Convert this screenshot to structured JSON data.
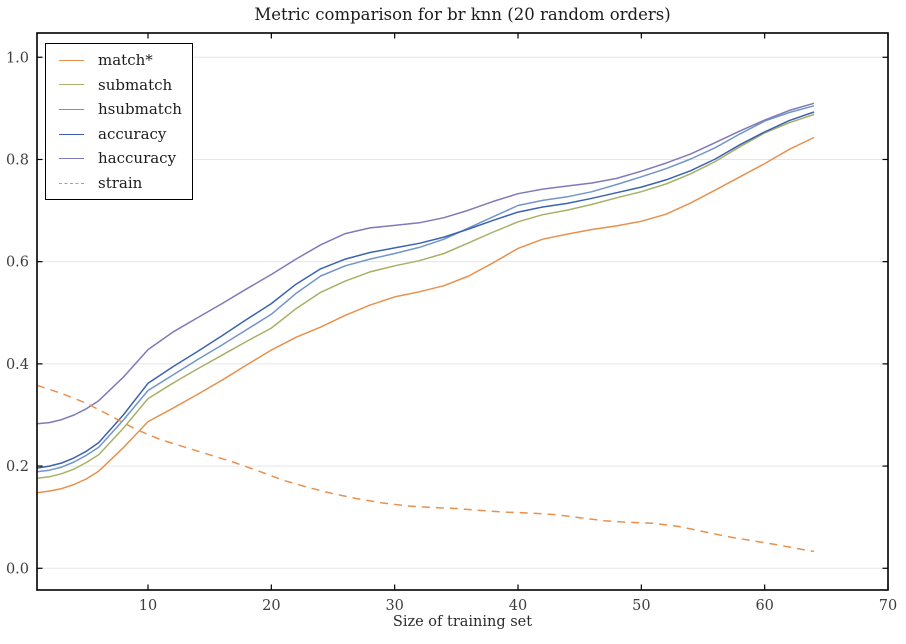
{
  "figure": {
    "title": "Metric comparison for br knn (20 random orders)",
    "xlabel": "Size of training set"
  },
  "chart_data": {
    "type": "line",
    "title": "Metric comparison for br knn (20 random orders)",
    "xlabel": "Size of training set",
    "ylabel": "",
    "xlim": [
      1,
      70
    ],
    "ylim": [
      -0.0425,
      1.0475
    ],
    "xticks": [
      10,
      20,
      30,
      40,
      50,
      60,
      70
    ],
    "xtick_labels": [
      "10",
      "20",
      "30",
      "40",
      "50",
      "60",
      "70"
    ],
    "yticks": [
      0.0,
      0.2,
      0.4,
      0.6,
      0.8,
      1.0
    ],
    "ytick_labels": [
      "0.0",
      "0.2",
      "0.4",
      "0.6",
      "0.8",
      "1.0"
    ],
    "grid": "horizontal",
    "gridline_color": "#e7e7e7",
    "spine_color": "#000000",
    "tick_label_color": "#3d3d3d",
    "legend_position": "upper-left",
    "series": [
      {
        "name": "match*",
        "color": "#e8914f",
        "style": "solid",
        "points": [
          [
            1,
            0.148
          ],
          [
            2,
            0.151
          ],
          [
            3,
            0.156
          ],
          [
            4,
            0.164
          ],
          [
            5,
            0.175
          ],
          [
            6,
            0.19
          ],
          [
            8,
            0.236
          ],
          [
            10,
            0.287
          ],
          [
            12,
            0.313
          ],
          [
            14,
            0.34
          ],
          [
            16,
            0.368
          ],
          [
            18,
            0.398
          ],
          [
            20,
            0.427
          ],
          [
            22,
            0.452
          ],
          [
            24,
            0.472
          ],
          [
            26,
            0.495
          ],
          [
            28,
            0.515
          ],
          [
            30,
            0.531
          ],
          [
            32,
            0.541
          ],
          [
            34,
            0.553
          ],
          [
            36,
            0.572
          ],
          [
            38,
            0.598
          ],
          [
            40,
            0.626
          ],
          [
            42,
            0.644
          ],
          [
            44,
            0.654
          ],
          [
            46,
            0.663
          ],
          [
            48,
            0.67
          ],
          [
            50,
            0.679
          ],
          [
            52,
            0.693
          ],
          [
            54,
            0.715
          ],
          [
            56,
            0.74
          ],
          [
            58,
            0.766
          ],
          [
            60,
            0.792
          ],
          [
            62,
            0.82
          ],
          [
            64,
            0.843
          ]
        ]
      },
      {
        "name": "submatch",
        "color": "#a6b165",
        "style": "solid",
        "points": [
          [
            1,
            0.176
          ],
          [
            2,
            0.179
          ],
          [
            3,
            0.185
          ],
          [
            4,
            0.194
          ],
          [
            5,
            0.207
          ],
          [
            6,
            0.222
          ],
          [
            8,
            0.274
          ],
          [
            10,
            0.332
          ],
          [
            12,
            0.362
          ],
          [
            14,
            0.39
          ],
          [
            16,
            0.417
          ],
          [
            18,
            0.444
          ],
          [
            20,
            0.47
          ],
          [
            22,
            0.508
          ],
          [
            24,
            0.54
          ],
          [
            26,
            0.562
          ],
          [
            28,
            0.58
          ],
          [
            30,
            0.592
          ],
          [
            32,
            0.602
          ],
          [
            34,
            0.616
          ],
          [
            36,
            0.637
          ],
          [
            38,
            0.658
          ],
          [
            40,
            0.678
          ],
          [
            42,
            0.692
          ],
          [
            44,
            0.701
          ],
          [
            46,
            0.712
          ],
          [
            48,
            0.725
          ],
          [
            50,
            0.737
          ],
          [
            52,
            0.752
          ],
          [
            54,
            0.772
          ],
          [
            56,
            0.796
          ],
          [
            58,
            0.825
          ],
          [
            60,
            0.852
          ],
          [
            62,
            0.872
          ],
          [
            64,
            0.888
          ]
        ]
      },
      {
        "name": "hsubmatch",
        "color": "#7295c9",
        "style": "solid",
        "points": [
          [
            1,
            0.189
          ],
          [
            2,
            0.192
          ],
          [
            3,
            0.198
          ],
          [
            4,
            0.208
          ],
          [
            5,
            0.221
          ],
          [
            6,
            0.237
          ],
          [
            8,
            0.29
          ],
          [
            10,
            0.348
          ],
          [
            12,
            0.378
          ],
          [
            14,
            0.408
          ],
          [
            16,
            0.437
          ],
          [
            18,
            0.467
          ],
          [
            20,
            0.497
          ],
          [
            22,
            0.538
          ],
          [
            24,
            0.572
          ],
          [
            26,
            0.592
          ],
          [
            28,
            0.605
          ],
          [
            30,
            0.616
          ],
          [
            32,
            0.628
          ],
          [
            34,
            0.644
          ],
          [
            36,
            0.666
          ],
          [
            38,
            0.688
          ],
          [
            40,
            0.71
          ],
          [
            42,
            0.72
          ],
          [
            44,
            0.727
          ],
          [
            46,
            0.737
          ],
          [
            48,
            0.751
          ],
          [
            50,
            0.766
          ],
          [
            52,
            0.782
          ],
          [
            54,
            0.801
          ],
          [
            56,
            0.823
          ],
          [
            58,
            0.85
          ],
          [
            60,
            0.875
          ],
          [
            62,
            0.892
          ],
          [
            64,
            0.905
          ]
        ]
      },
      {
        "name": "accuracy",
        "color": "#3c63b0",
        "style": "solid",
        "points": [
          [
            1,
            0.196
          ],
          [
            2,
            0.2
          ],
          [
            3,
            0.206
          ],
          [
            4,
            0.216
          ],
          [
            5,
            0.229
          ],
          [
            6,
            0.246
          ],
          [
            8,
            0.3
          ],
          [
            10,
            0.362
          ],
          [
            12,
            0.394
          ],
          [
            14,
            0.424
          ],
          [
            16,
            0.455
          ],
          [
            18,
            0.487
          ],
          [
            20,
            0.518
          ],
          [
            22,
            0.556
          ],
          [
            24,
            0.586
          ],
          [
            26,
            0.605
          ],
          [
            28,
            0.618
          ],
          [
            30,
            0.627
          ],
          [
            32,
            0.636
          ],
          [
            34,
            0.648
          ],
          [
            36,
            0.664
          ],
          [
            38,
            0.681
          ],
          [
            40,
            0.697
          ],
          [
            42,
            0.707
          ],
          [
            44,
            0.714
          ],
          [
            46,
            0.724
          ],
          [
            48,
            0.735
          ],
          [
            50,
            0.746
          ],
          [
            52,
            0.76
          ],
          [
            54,
            0.778
          ],
          [
            56,
            0.801
          ],
          [
            58,
            0.829
          ],
          [
            60,
            0.854
          ],
          [
            62,
            0.876
          ],
          [
            64,
            0.893
          ]
        ]
      },
      {
        "name": "haccuracy",
        "color": "#7f7ab8",
        "style": "solid",
        "points": [
          [
            1,
            0.283
          ],
          [
            2,
            0.285
          ],
          [
            3,
            0.291
          ],
          [
            4,
            0.3
          ],
          [
            5,
            0.312
          ],
          [
            6,
            0.328
          ],
          [
            8,
            0.374
          ],
          [
            10,
            0.428
          ],
          [
            12,
            0.462
          ],
          [
            14,
            0.49
          ],
          [
            16,
            0.518
          ],
          [
            18,
            0.547
          ],
          [
            20,
            0.575
          ],
          [
            22,
            0.605
          ],
          [
            24,
            0.633
          ],
          [
            26,
            0.655
          ],
          [
            28,
            0.666
          ],
          [
            30,
            0.671
          ],
          [
            32,
            0.676
          ],
          [
            34,
            0.686
          ],
          [
            36,
            0.701
          ],
          [
            38,
            0.718
          ],
          [
            40,
            0.733
          ],
          [
            42,
            0.742
          ],
          [
            44,
            0.748
          ],
          [
            46,
            0.754
          ],
          [
            48,
            0.763
          ],
          [
            50,
            0.777
          ],
          [
            52,
            0.793
          ],
          [
            54,
            0.811
          ],
          [
            56,
            0.833
          ],
          [
            58,
            0.856
          ],
          [
            60,
            0.877
          ],
          [
            62,
            0.896
          ],
          [
            64,
            0.91
          ]
        ]
      },
      {
        "name": "strain",
        "color": "#e8914f",
        "style": "dashed",
        "points": [
          [
            1,
            0.358
          ],
          [
            3,
            0.342
          ],
          [
            5,
            0.323
          ],
          [
            7,
            0.298
          ],
          [
            9,
            0.272
          ],
          [
            11,
            0.252
          ],
          [
            13,
            0.237
          ],
          [
            15,
            0.222
          ],
          [
            17,
            0.207
          ],
          [
            19,
            0.19
          ],
          [
            21,
            0.172
          ],
          [
            23,
            0.158
          ],
          [
            25,
            0.146
          ],
          [
            27,
            0.136
          ],
          [
            29,
            0.128
          ],
          [
            31,
            0.122
          ],
          [
            33,
            0.119
          ],
          [
            35,
            0.117
          ],
          [
            37,
            0.113
          ],
          [
            39,
            0.11
          ],
          [
            41,
            0.108
          ],
          [
            43,
            0.105
          ],
          [
            45,
            0.099
          ],
          [
            47,
            0.093
          ],
          [
            49,
            0.09
          ],
          [
            51,
            0.088
          ],
          [
            53,
            0.082
          ],
          [
            55,
            0.072
          ],
          [
            57,
            0.062
          ],
          [
            59,
            0.054
          ],
          [
            61,
            0.046
          ],
          [
            63,
            0.037
          ],
          [
            64,
            0.033
          ]
        ]
      }
    ],
    "legend_entries": [
      "match*",
      "submatch",
      "hsubmatch",
      "accuracy",
      "haccuracy",
      "strain"
    ]
  }
}
